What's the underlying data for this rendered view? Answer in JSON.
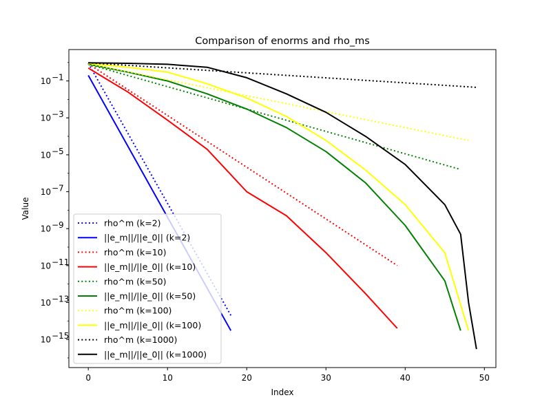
{
  "chart_data": {
    "type": "line",
    "title": "Comparison of enorms and rho_ms",
    "xlabel": "Index",
    "ylabel": "Value",
    "xlim": [
      -2.45,
      51.45
    ],
    "ylim": [
      3e-17,
      5
    ],
    "yscale": "log",
    "xticks": [
      0,
      10,
      20,
      30,
      40,
      50
    ],
    "yticks": [
      {
        "value": 0.1,
        "mantissa": "10",
        "exponent": "−1"
      },
      {
        "value": 0.001,
        "mantissa": "10",
        "exponent": "−3"
      },
      {
        "value": 1e-05,
        "mantissa": "10",
        "exponent": "−5"
      },
      {
        "value": 1e-07,
        "mantissa": "10",
        "exponent": "−7"
      },
      {
        "value": 1e-09,
        "mantissa": "10",
        "exponent": "−9"
      },
      {
        "value": 1e-11,
        "mantissa": "10",
        "exponent": "−11"
      },
      {
        "value": 1e-13,
        "mantissa": "10",
        "exponent": "−13"
      },
      {
        "value": 1e-15,
        "mantissa": "10",
        "exponent": "−15"
      }
    ],
    "legend_position": "lower-left",
    "series": [
      {
        "name": "rho^m (k=2)",
        "color": "#0000ff",
        "style": "dotted",
        "x": [
          0,
          18
        ],
        "y": [
          0.9,
          2e-14
        ]
      },
      {
        "name": "||e_m||/||e_0|| (k=2)",
        "color": "#0000ff",
        "style": "solid",
        "x": [
          0,
          18
        ],
        "y": [
          0.2,
          3e-15
        ]
      },
      {
        "name": "rho^m (k=10)",
        "color": "#ff0000",
        "style": "dotted",
        "x": [
          0,
          39
        ],
        "y": [
          0.85,
          1e-11
        ]
      },
      {
        "name": "||e_m||/||e_0|| (k=10)",
        "color": "#ff0000",
        "style": "solid",
        "x": [
          0,
          2,
          5,
          10,
          15,
          20,
          25,
          30,
          35,
          39
        ],
        "y": [
          0.5,
          0.15,
          0.025,
          0.00075,
          2e-05,
          1e-07,
          5e-09,
          5e-11,
          3e-13,
          4e-15
        ]
      },
      {
        "name": "rho^m (k=50)",
        "color": "#008000",
        "style": "dotted",
        "x": [
          0,
          47
        ],
        "y": [
          0.8,
          1.6e-06
        ]
      },
      {
        "name": "||e_m||/||e_0|| (k=50)",
        "color": "#008000",
        "style": "solid",
        "x": [
          0,
          5,
          10,
          15,
          20,
          25,
          30,
          35,
          40,
          45,
          47
        ],
        "y": [
          0.8,
          0.3,
          0.1,
          0.02,
          0.003,
          0.0003,
          1.5e-05,
          3e-07,
          1.5e-09,
          1.5e-12,
          3e-15
        ]
      },
      {
        "name": "rho^m (k=100)",
        "color": "#ffff00",
        "style": "dotted",
        "x": [
          0,
          48
        ],
        "y": [
          0.85,
          6e-05
        ]
      },
      {
        "name": "||e_m||/||e_0|| (k=100)",
        "color": "#ffff00",
        "style": "solid",
        "x": [
          0,
          5,
          10,
          15,
          20,
          25,
          30,
          35,
          40,
          45,
          48
        ],
        "y": [
          0.9,
          0.55,
          0.3,
          0.07,
          0.012,
          0.0012,
          6e-05,
          1.5e-06,
          2e-08,
          5e-11,
          3e-15
        ]
      },
      {
        "name": "rho^m (k=1000)",
        "color": "#000000",
        "style": "dotted",
        "x": [
          0,
          49
        ],
        "y": [
          0.95,
          0.045
        ]
      },
      {
        "name": "||e_m||/||e_0|| (k=1000)",
        "color": "#000000",
        "style": "solid",
        "x": [
          0,
          5,
          10,
          15,
          20,
          25,
          30,
          35,
          40,
          45,
          47,
          48,
          49
        ],
        "y": [
          0.95,
          0.9,
          0.8,
          0.55,
          0.15,
          0.02,
          0.002,
          0.0001,
          3e-06,
          2e-08,
          5e-10,
          1e-13,
          3e-16
        ]
      }
    ]
  }
}
